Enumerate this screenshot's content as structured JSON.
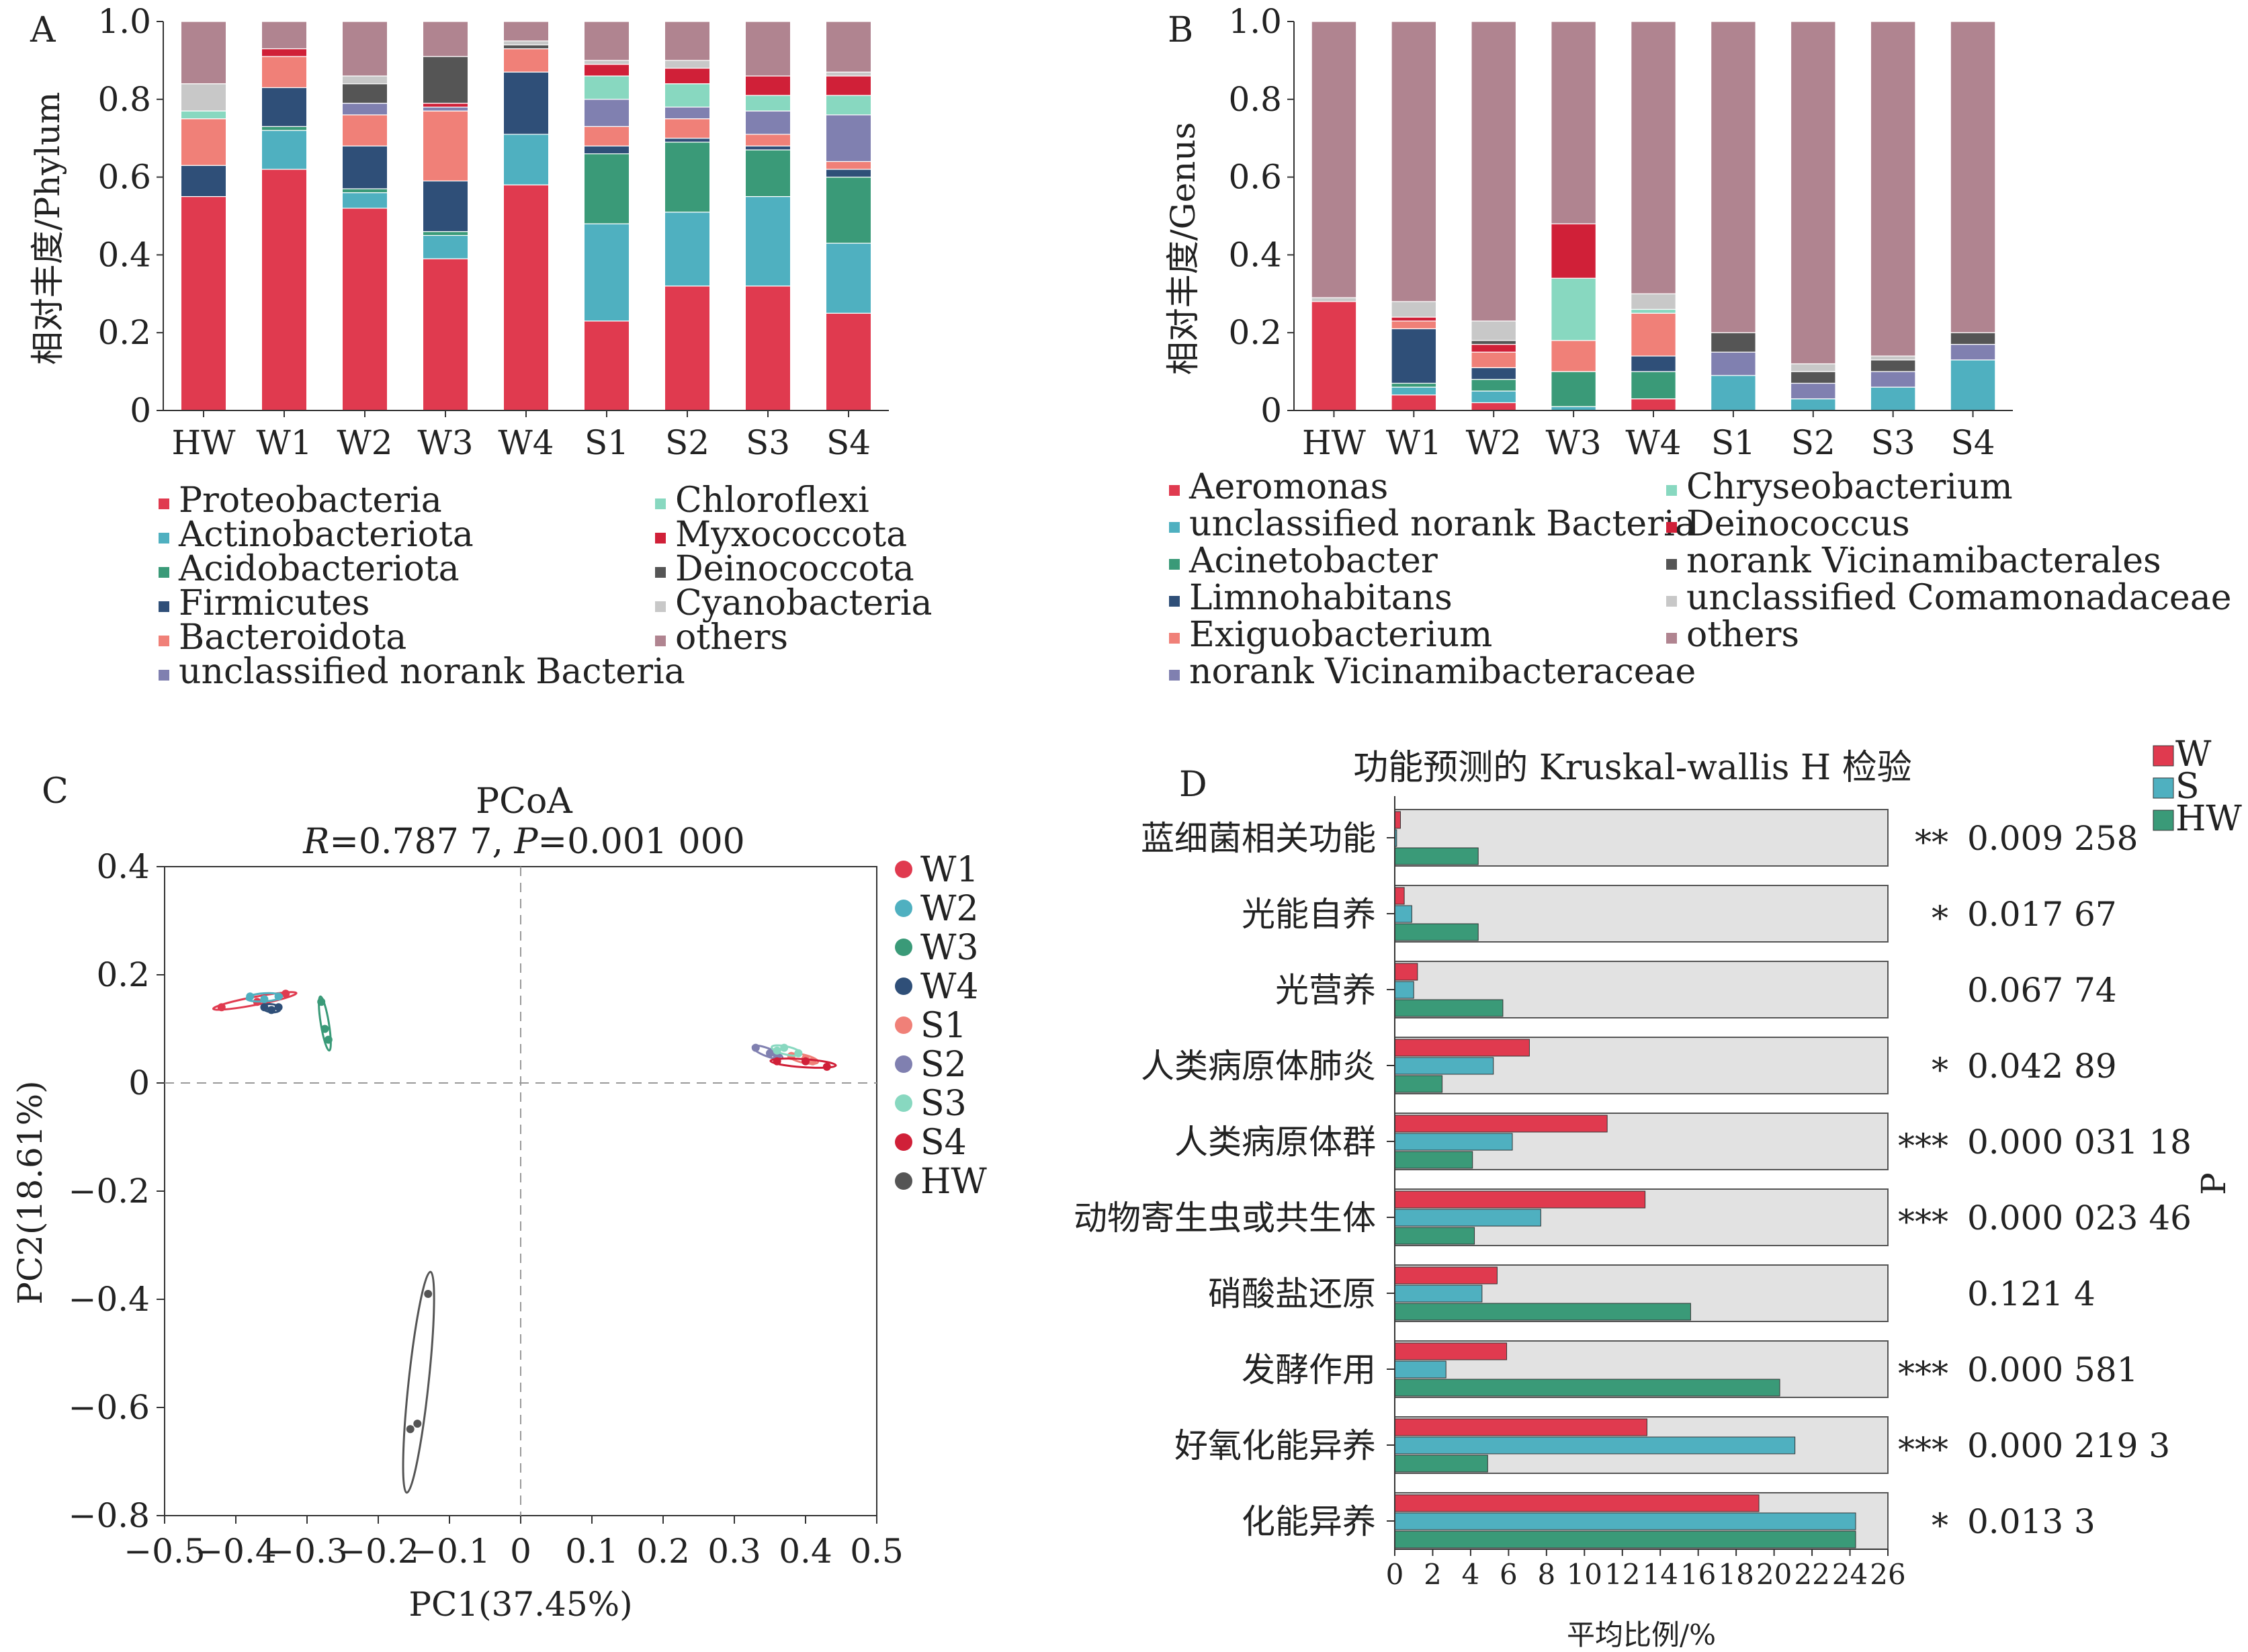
{
  "panels": {
    "a": "A",
    "b": "B",
    "c": "C",
    "d": "D"
  },
  "chart_data": [
    {
      "panel": "A",
      "type": "bar",
      "stacked": true,
      "xlabel": "",
      "ylabel": "相对丰度/Phylum",
      "ylim": [
        0,
        1
      ],
      "yticks": [
        "0",
        "0.2",
        "0.4",
        "0.6",
        "0.8",
        "1.0"
      ],
      "categories": [
        "HW",
        "W1",
        "W2",
        "W3",
        "W4",
        "S1",
        "S2",
        "S3",
        "S4"
      ],
      "series": [
        {
          "name": "Proteobacteria",
          "color": "#e03a4f",
          "values": [
            0.55,
            0.62,
            0.52,
            0.39,
            0.58,
            0.23,
            0.32,
            0.32,
            0.25
          ]
        },
        {
          "name": "Actinobacteriota",
          "color": "#4fb0c0",
          "values": [
            0.0,
            0.1,
            0.04,
            0.06,
            0.13,
            0.25,
            0.19,
            0.23,
            0.18
          ]
        },
        {
          "name": "Acidobacteriota",
          "color": "#3a9a78",
          "values": [
            0.0,
            0.01,
            0.01,
            0.01,
            0.0,
            0.18,
            0.18,
            0.12,
            0.17
          ]
        },
        {
          "name": "Firmicutes",
          "color": "#2f4f78",
          "values": [
            0.08,
            0.1,
            0.11,
            0.13,
            0.16,
            0.02,
            0.01,
            0.01,
            0.02
          ]
        },
        {
          "name": "Bacteroidota",
          "color": "#f08078",
          "values": [
            0.12,
            0.08,
            0.08,
            0.18,
            0.06,
            0.05,
            0.05,
            0.03,
            0.02
          ]
        },
        {
          "name": "unclassified norank Bacteria",
          "color": "#8080b0",
          "values": [
            0.0,
            0.0,
            0.03,
            0.01,
            0.0,
            0.07,
            0.03,
            0.06,
            0.12
          ]
        },
        {
          "name": "Chloroflexi",
          "color": "#88d8c0",
          "values": [
            0.02,
            0.0,
            0.0,
            0.0,
            0.0,
            0.06,
            0.06,
            0.04,
            0.05
          ]
        },
        {
          "name": "Myxococcota",
          "color": "#d02038",
          "values": [
            0.0,
            0.02,
            0.0,
            0.01,
            0.0,
            0.03,
            0.04,
            0.05,
            0.05
          ]
        },
        {
          "name": "Deinococcota",
          "color": "#555555",
          "values": [
            0.0,
            0.0,
            0.05,
            0.12,
            0.01,
            0.0,
            0.0,
            0.0,
            0.0
          ]
        },
        {
          "name": "Cyanobacteria",
          "color": "#c8c8c8",
          "values": [
            0.07,
            0.0,
            0.02,
            0.0,
            0.01,
            0.01,
            0.02,
            0.0,
            0.01
          ]
        },
        {
          "name": "others",
          "color": "#b08490",
          "values": [
            0.16,
            0.07,
            0.14,
            0.09,
            0.05,
            0.1,
            0.1,
            0.14,
            0.13
          ]
        }
      ]
    },
    {
      "panel": "B",
      "type": "bar",
      "stacked": true,
      "xlabel": "",
      "ylabel": "相对丰度/Genus",
      "ylim": [
        0,
        1
      ],
      "yticks": [
        "0",
        "0.2",
        "0.4",
        "0.6",
        "0.8",
        "1.0"
      ],
      "categories": [
        "HW",
        "W1",
        "W2",
        "W3",
        "W4",
        "S1",
        "S2",
        "S3",
        "S4"
      ],
      "series": [
        {
          "name": "Aeromonas",
          "color": "#e03a4f",
          "values": [
            0.28,
            0.04,
            0.02,
            0.0,
            0.03,
            0.0,
            0.0,
            0.0,
            0.0
          ]
        },
        {
          "name": "unclassified norank Bacteria",
          "color": "#4fb0c0",
          "values": [
            0.0,
            0.02,
            0.03,
            0.01,
            0.0,
            0.09,
            0.03,
            0.06,
            0.13
          ]
        },
        {
          "name": "Acinetobacter",
          "color": "#3a9a78",
          "values": [
            0.0,
            0.01,
            0.03,
            0.09,
            0.07,
            0.0,
            0.0,
            0.0,
            0.0
          ]
        },
        {
          "name": "Limnohabitans",
          "color": "#2f4f78",
          "values": [
            0.0,
            0.14,
            0.03,
            0.0,
            0.04,
            0.0,
            0.0,
            0.0,
            0.0
          ]
        },
        {
          "name": "Exiguobacterium",
          "color": "#f08078",
          "values": [
            0.0,
            0.02,
            0.04,
            0.08,
            0.11,
            0.0,
            0.0,
            0.0,
            0.0
          ]
        },
        {
          "name": "norank Vicinamibacteraceae",
          "color": "#8080b0",
          "values": [
            0.0,
            0.0,
            0.0,
            0.0,
            0.0,
            0.06,
            0.04,
            0.04,
            0.04
          ]
        },
        {
          "name": "Chryseobacterium",
          "color": "#88d8c0",
          "values": [
            0.0,
            0.0,
            0.0,
            0.16,
            0.01,
            0.0,
            0.0,
            0.0,
            0.0
          ]
        },
        {
          "name": "Deinococcus",
          "color": "#d02038",
          "values": [
            0.0,
            0.01,
            0.02,
            0.14,
            0.0,
            0.0,
            0.0,
            0.0,
            0.0
          ]
        },
        {
          "name": "norank Vicinamibacterales",
          "color": "#555555",
          "values": [
            0.0,
            0.0,
            0.01,
            0.0,
            0.0,
            0.05,
            0.03,
            0.03,
            0.03
          ]
        },
        {
          "name": "unclassified Comamonadaceae",
          "color": "#c8c8c8",
          "values": [
            0.01,
            0.04,
            0.05,
            0.0,
            0.04,
            0.0,
            0.02,
            0.01,
            0.0
          ]
        },
        {
          "name": "others",
          "color": "#b08490",
          "values": [
            0.71,
            0.72,
            0.77,
            0.52,
            0.7,
            0.8,
            0.88,
            0.86,
            0.8
          ]
        }
      ]
    },
    {
      "panel": "C",
      "type": "scatter",
      "title": "PCoA",
      "subtitle": {
        "r_label": "R",
        "r_value": "=0.787 7, ",
        "p_label": "P",
        "p_value": "=0.001 000"
      },
      "xlabel": "PC1(37.45%)",
      "ylabel": "PC2(18.61%)",
      "xlim": [
        -0.5,
        0.5
      ],
      "ylim": [
        -0.8,
        0.4
      ],
      "xticks": [
        "−0.5",
        "−0.4",
        "−0.3",
        "−0.2",
        "−0.1",
        "0",
        "0.1",
        "0.2",
        "0.3",
        "0.4",
        "0.5"
      ],
      "yticks": [
        "−0.8",
        "−0.6",
        "−0.4",
        "−0.2",
        "0",
        "0.2",
        "0.4"
      ],
      "series": [
        {
          "name": "W1",
          "color": "#e03a4f",
          "points": [
            [
              -0.42,
              0.14
            ],
            [
              -0.37,
              0.15
            ],
            [
              -0.33,
              0.165
            ]
          ]
        },
        {
          "name": "W2",
          "color": "#4fb0c0",
          "points": [
            [
              -0.38,
              0.16
            ],
            [
              -0.36,
              0.155
            ],
            [
              -0.34,
              0.16
            ]
          ]
        },
        {
          "name": "W3",
          "color": "#3a9a78",
          "points": [
            [
              -0.28,
              0.15
            ],
            [
              -0.275,
              0.1
            ],
            [
              -0.27,
              0.08
            ]
          ]
        },
        {
          "name": "W4",
          "color": "#2f4f78",
          "points": [
            [
              -0.36,
              0.14
            ],
            [
              -0.35,
              0.135
            ],
            [
              -0.34,
              0.14
            ]
          ]
        },
        {
          "name": "S1",
          "color": "#f08078",
          "points": [
            [
              0.38,
              0.05
            ],
            [
              0.4,
              0.045
            ],
            [
              0.41,
              0.04
            ]
          ]
        },
        {
          "name": "S2",
          "color": "#8080b0",
          "points": [
            [
              0.33,
              0.065
            ],
            [
              0.35,
              0.055
            ],
            [
              0.36,
              0.05
            ]
          ]
        },
        {
          "name": "S3",
          "color": "#88d8c0",
          "points": [
            [
              0.36,
              0.06
            ],
            [
              0.37,
              0.065
            ],
            [
              0.39,
              0.055
            ]
          ]
        },
        {
          "name": "S4",
          "color": "#d02038",
          "points": [
            [
              0.36,
              0.04
            ],
            [
              0.4,
              0.04
            ],
            [
              0.43,
              0.03
            ]
          ]
        },
        {
          "name": "HW",
          "color": "#555555",
          "points": [
            [
              -0.13,
              -0.39
            ],
            [
              -0.155,
              -0.64
            ],
            [
              -0.145,
              -0.63
            ]
          ]
        }
      ]
    },
    {
      "panel": "D",
      "type": "bar",
      "orientation": "horizontal",
      "title": "功能预测的 Kruskal-wallis H 检验",
      "xlabel": "平均比例/%",
      "ylabel": "P",
      "xlim": [
        0,
        26
      ],
      "xticks": [
        "0",
        "2",
        "4",
        "6",
        "8",
        "10",
        "12",
        "14",
        "16",
        "18",
        "20",
        "22",
        "24",
        "26"
      ],
      "categories": [
        "蓝细菌相关功能",
        "光能自养",
        "光营养",
        "人类病原体肺炎",
        "人类病原体群",
        "动物寄生虫或共生体",
        "硝酸盐还原",
        "发酵作用",
        "好氧化能异养",
        "化能异养"
      ],
      "significance": [
        "**",
        "*",
        "",
        "*",
        "***",
        "***",
        "",
        "***",
        "***",
        "*"
      ],
      "p_values": [
        "0.009 258",
        "0.017 67",
        "0.067 74",
        "0.042 89",
        "0.000 031 18",
        "0.000 023 46",
        "0.121 4",
        "0.000 581",
        "0.000 219 3",
        "0.013 3"
      ],
      "series": [
        {
          "name": "W",
          "color": "#e03a4f",
          "values": [
            0.3,
            0.5,
            1.2,
            7.1,
            11.2,
            13.2,
            5.4,
            5.9,
            13.3,
            19.2
          ]
        },
        {
          "name": "S",
          "color": "#4fb0c0",
          "values": [
            0.1,
            0.9,
            1.0,
            5.2,
            6.2,
            7.7,
            4.6,
            2.7,
            21.1,
            24.3
          ]
        },
        {
          "name": "HW",
          "color": "#3a9a78",
          "values": [
            4.4,
            4.4,
            5.7,
            2.5,
            4.1,
            4.2,
            15.6,
            20.3,
            4.9,
            24.3
          ]
        }
      ]
    }
  ]
}
